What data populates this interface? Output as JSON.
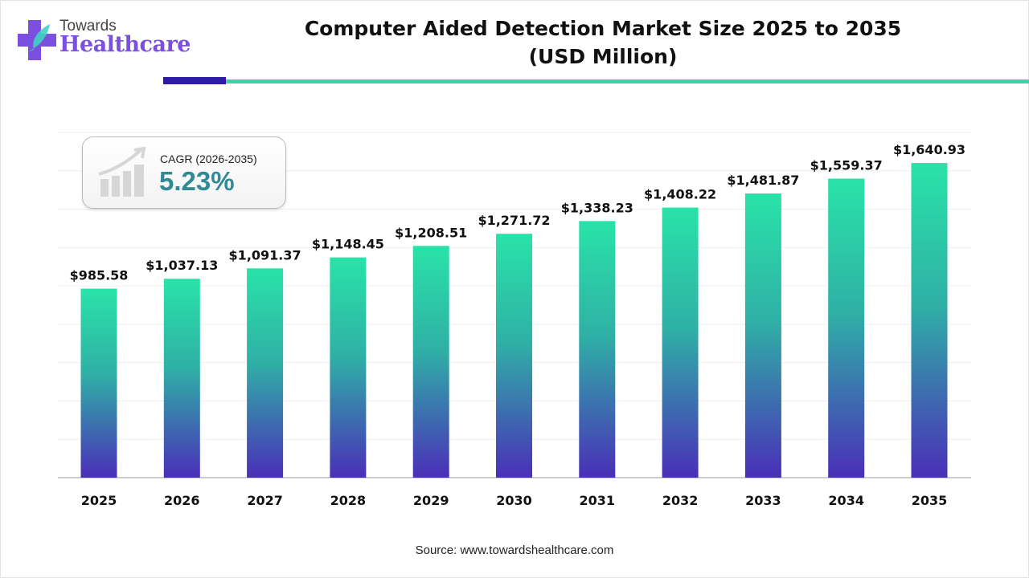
{
  "brand": {
    "line1": "Towards",
    "line2": "Healthcare"
  },
  "colors": {
    "bar_top": "#29e3a8",
    "bar_bottom": "#4a2fb8",
    "cagr_value": "#2f8a96",
    "accent_dark": "#2e1aa6",
    "accent_teal": "#3fd1a8"
  },
  "cagr": {
    "label": "CAGR (2026-2035)",
    "value": "5.23%",
    "icon": "growth-chart-icon"
  },
  "source": "Source: www.towardshealthcare.com",
  "chart_data": {
    "type": "bar",
    "title": "Computer Aided Detection Market Size 2025 to 2035",
    "subtitle": "(USD Million)",
    "categories": [
      "2025",
      "2026",
      "2027",
      "2028",
      "2029",
      "2030",
      "2031",
      "2032",
      "2033",
      "2034",
      "2035"
    ],
    "values": [
      985.58,
      1037.13,
      1091.37,
      1148.45,
      1208.51,
      1271.72,
      1338.23,
      1408.22,
      1481.87,
      1559.37,
      1640.93
    ],
    "data_labels": [
      "$985.58",
      "$1,037.13",
      "$1,091.37",
      "$1,148.45",
      "$1,208.51",
      "$1,271.72",
      "$1,338.23",
      "$1,408.22",
      "$1,481.87",
      "$1,559.37",
      "$1,640.93"
    ],
    "ylim": [
      0,
      1800
    ],
    "grid": true,
    "grid_step": 200,
    "xlabel": "",
    "ylabel": ""
  }
}
